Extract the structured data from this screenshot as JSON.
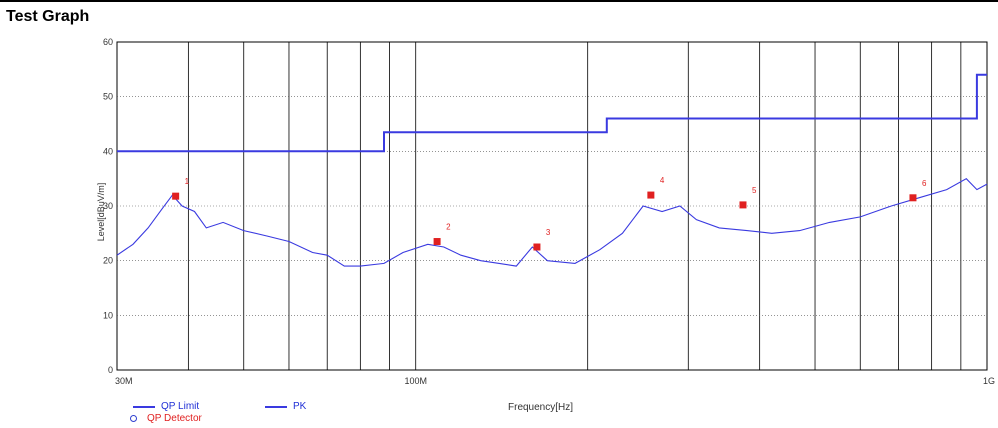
{
  "title": "Test Graph",
  "chart_data": {
    "type": "line",
    "title": "Test Graph",
    "xlabel": "Frequency[Hz]",
    "ylabel": "Level[dBuV/m]",
    "x_scale": "log",
    "xlim_hz": [
      30000000,
      1000000000
    ],
    "ylim": [
      0,
      60
    ],
    "x_ticks": [
      {
        "value": 30000000,
        "label": "30M"
      },
      {
        "value": 100000000,
        "label": "100M"
      },
      {
        "value": 1000000000,
        "label": "1G"
      }
    ],
    "y_ticks": [
      0,
      10,
      20,
      30,
      40,
      50,
      60
    ],
    "grid": true,
    "series": [
      {
        "name": "QP Limit",
        "color": "#3a3ae0",
        "step": true,
        "points": [
          [
            30000000,
            40
          ],
          [
            88000000,
            40
          ],
          [
            88000000,
            43.5
          ],
          [
            216000000,
            43.5
          ],
          [
            216000000,
            46
          ],
          [
            960000000,
            46
          ],
          [
            960000000,
            54
          ],
          [
            1000000000,
            54
          ]
        ]
      },
      {
        "name": "PK",
        "color": "#3a3ae0",
        "points": [
          [
            30000000,
            21
          ],
          [
            32000000,
            23
          ],
          [
            34000000,
            26
          ],
          [
            36000000,
            29.5
          ],
          [
            37500000,
            32
          ],
          [
            39000000,
            30
          ],
          [
            41000000,
            29
          ],
          [
            43000000,
            26
          ],
          [
            46000000,
            27
          ],
          [
            50000000,
            25.5
          ],
          [
            55000000,
            24.5
          ],
          [
            60000000,
            23.5
          ],
          [
            66000000,
            21.5
          ],
          [
            70000000,
            21
          ],
          [
            75000000,
            19
          ],
          [
            80000000,
            19
          ],
          [
            88000000,
            19.5
          ],
          [
            95000000,
            21.5
          ],
          [
            105000000,
            23
          ],
          [
            112000000,
            22.5
          ],
          [
            120000000,
            21
          ],
          [
            130000000,
            20
          ],
          [
            140000000,
            19.5
          ],
          [
            150000000,
            19
          ],
          [
            160000000,
            22.5
          ],
          [
            170000000,
            20
          ],
          [
            190000000,
            19.5
          ],
          [
            210000000,
            22
          ],
          [
            230000000,
            25
          ],
          [
            250000000,
            30
          ],
          [
            270000000,
            29
          ],
          [
            290000000,
            30
          ],
          [
            310000000,
            27.5
          ],
          [
            340000000,
            26
          ],
          [
            380000000,
            25.5
          ],
          [
            420000000,
            25
          ],
          [
            470000000,
            25.5
          ],
          [
            530000000,
            27
          ],
          [
            600000000,
            28
          ],
          [
            680000000,
            30
          ],
          [
            760000000,
            31.5
          ],
          [
            850000000,
            33
          ],
          [
            920000000,
            35
          ],
          [
            960000000,
            33
          ],
          [
            1000000000,
            34
          ]
        ]
      }
    ],
    "markers": {
      "name": "QP Detector",
      "color": "#e02020",
      "points": [
        {
          "label": "1",
          "x": 38000000,
          "y": 31.8
        },
        {
          "label": "2",
          "x": 109000000,
          "y": 23.5
        },
        {
          "label": "3",
          "x": 163000000,
          "y": 22.5
        },
        {
          "label": "4",
          "x": 258000000,
          "y": 32
        },
        {
          "label": "5",
          "x": 374000000,
          "y": 30.2
        },
        {
          "label": "6",
          "x": 742000000,
          "y": 31.5
        }
      ]
    }
  },
  "legend": {
    "qp_limit": "QP Limit",
    "pk": "PK",
    "qp_detector": "QP Detector"
  }
}
